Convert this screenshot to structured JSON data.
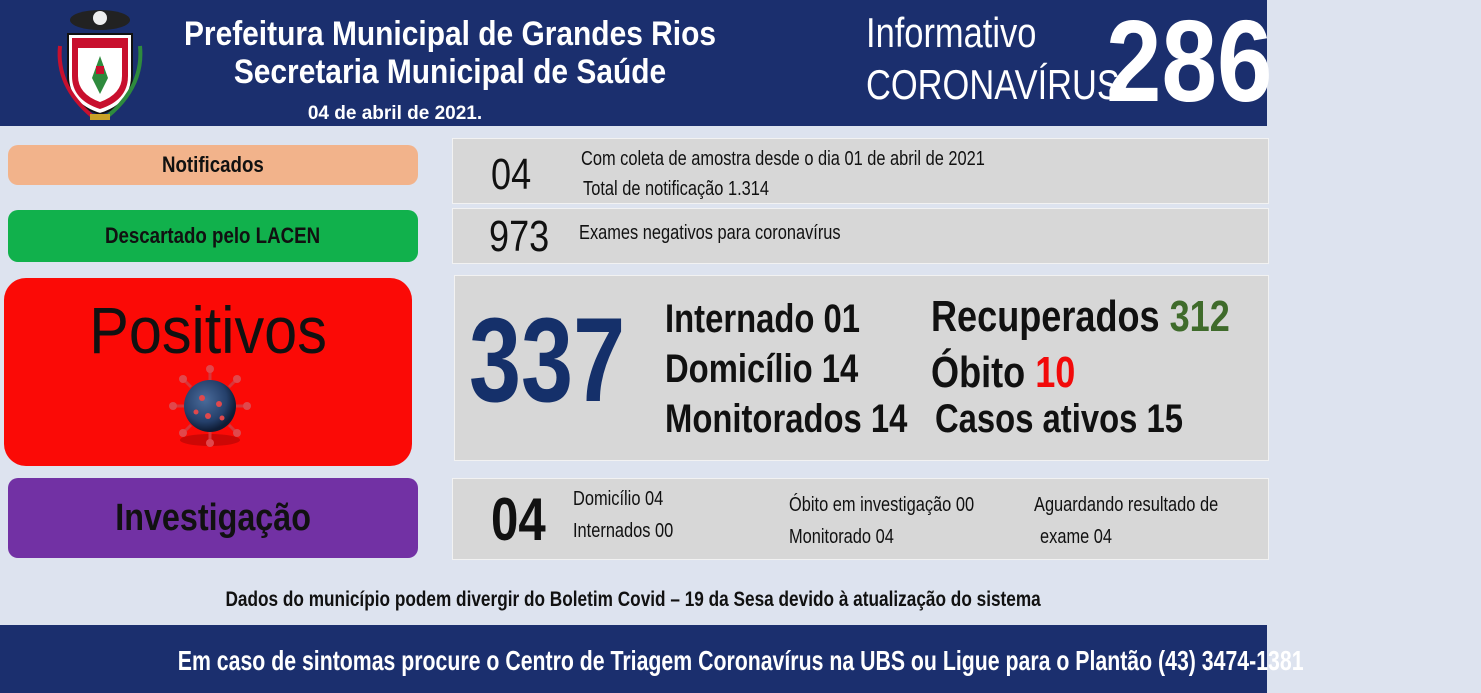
{
  "header": {
    "title": "Prefeitura Municipal de Grandes Rios",
    "subtitle": "Secretaria Municipal de Saúde",
    "date": "04 de abril de 2021.",
    "info_line1": "Informativo",
    "info_line2": "CORONAVÍRUS",
    "issue_number": "286"
  },
  "notificados": {
    "label": "Notificados",
    "value": "04",
    "line1": "Com coleta de amostra desde o dia 01 de abril de 2021",
    "line2": "Total de notificação 1.314"
  },
  "descartado": {
    "label": "Descartado  pelo  LACEN",
    "value": "973",
    "line1": "Exames negativos  para coronavírus"
  },
  "positivos": {
    "label": "Positivos",
    "value": "337",
    "internado": "Internado 01",
    "domicilio": "Domicílio 14",
    "monitorados": "Monitorados 14",
    "recuperados_label": "Recuperados",
    "recuperados_value": "312",
    "obito_label": "Óbito",
    "obito_value": "10",
    "casos_ativos": "Casos ativos 15"
  },
  "investigacao": {
    "label": "Investigação",
    "value": "04",
    "domicilio": "Domicílio  04",
    "internados": "Internados  00",
    "obito": "Óbito  em investigação  00",
    "monitorado": "Monitorado  04",
    "aguardando_line1": "Aguardando resultado de",
    "aguardando_line2": "exame 04"
  },
  "note": "Dados  do município  podem  divergir do Boletim  Covid – 19 da Sesa devido à atualização  do sistema",
  "footer": "Em caso de sintomas  procure  o Centro de Triagem  Coronavírus  na UBS ou Ligue para o Plantão  (43) 3474-1381",
  "colors": {
    "header_bg": "#1b2f6e",
    "notificados": "#f2b38b",
    "descartado": "#11b14c",
    "positivos": "#fb0a06",
    "investigacao": "#7231a4",
    "big_number": "#15306a",
    "recuperados": "#3f6b2b",
    "obito": "#f20a0a"
  }
}
